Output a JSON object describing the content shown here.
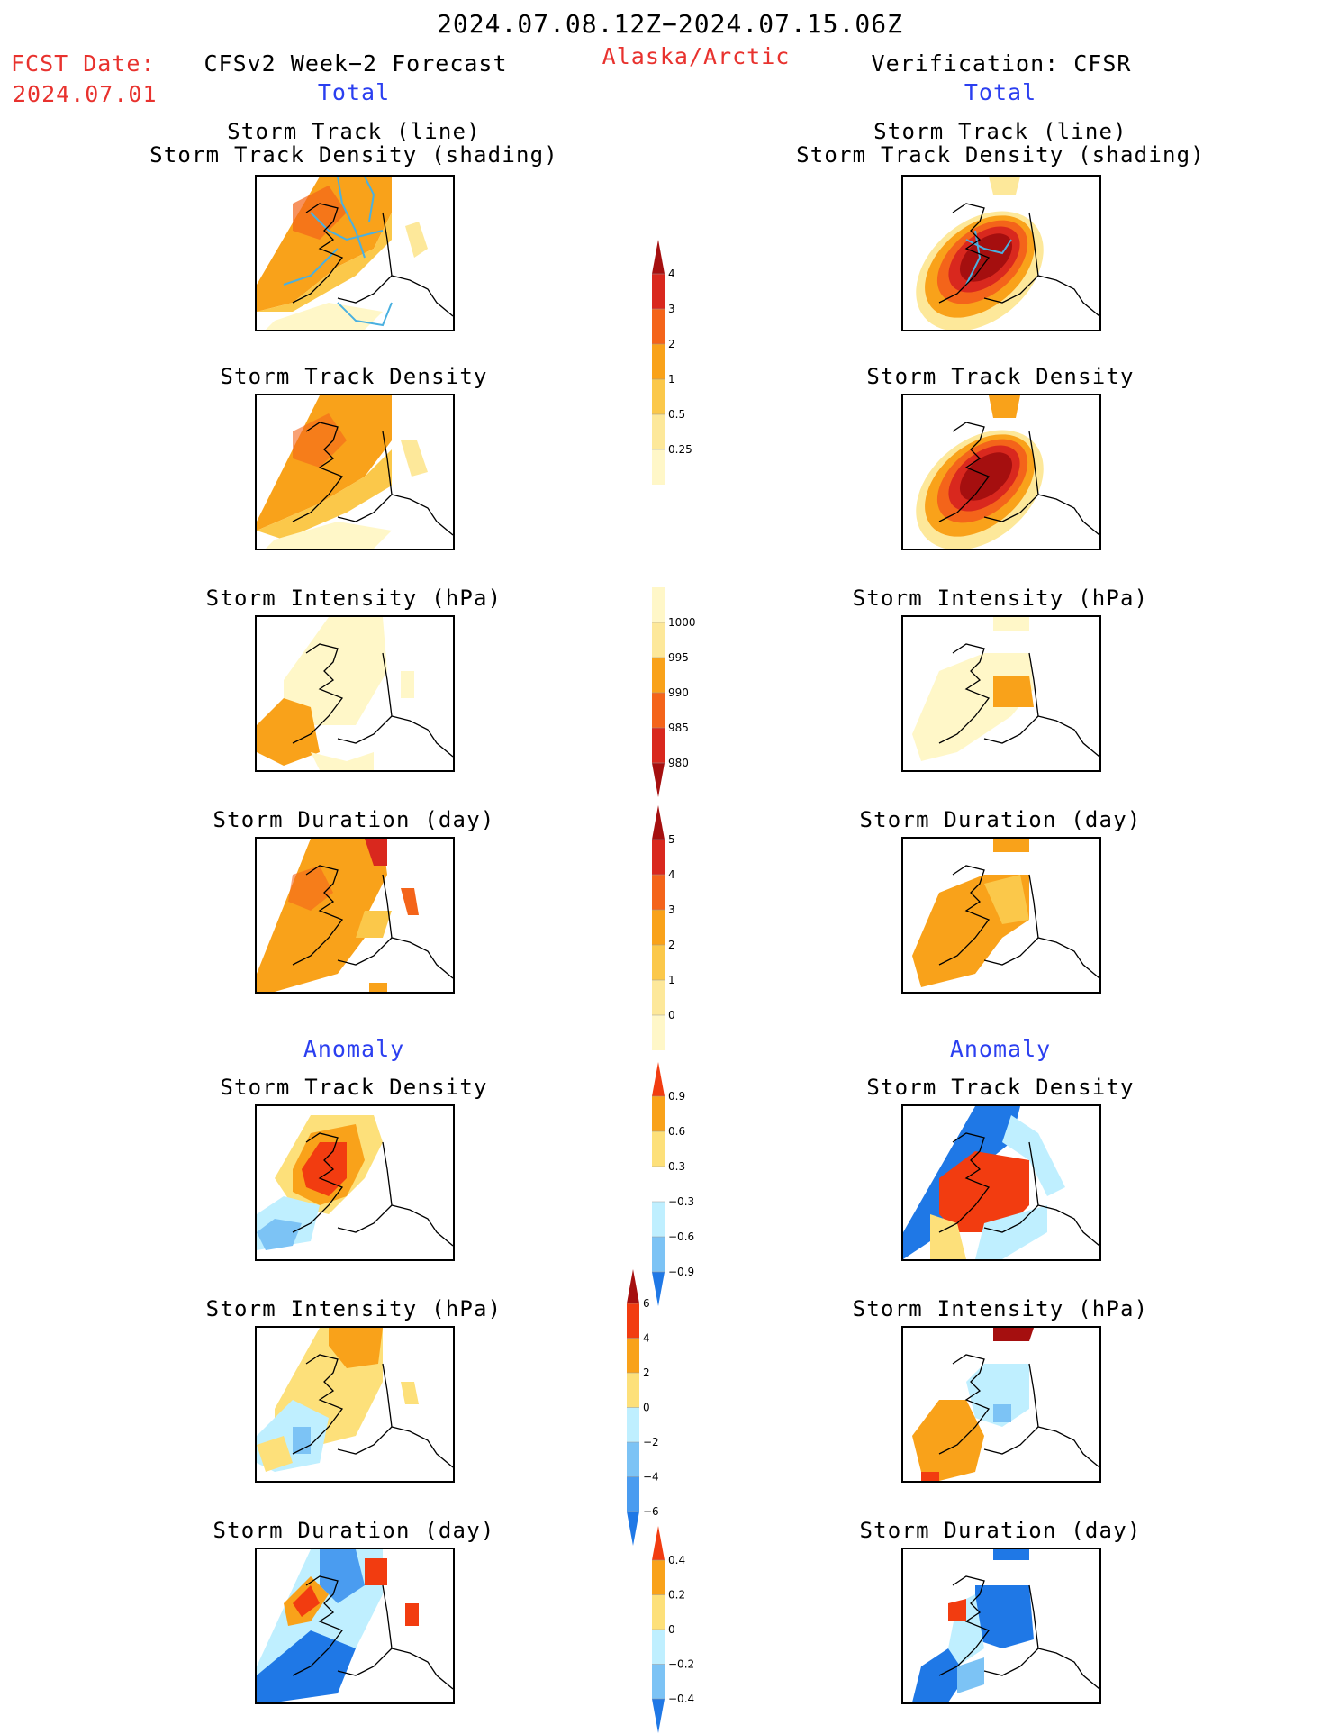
{
  "header": {
    "date_range": "2024.07.08.12Z−2024.07.15.06Z",
    "fcst_date_label": "FCST Date:",
    "fcst_date_value": "2024.07.01",
    "left_title": "CFSv2 Week−2 Forecast",
    "region": "Alaska/Arctic",
    "right_title": "Verification: CFSR",
    "total_left": "Total",
    "total_right": "Total"
  },
  "sections": {
    "anomaly_left": "Anomaly",
    "anomaly_right": "Anomaly"
  },
  "panels": {
    "left": [
      {
        "title1": "Storm Track (line)",
        "title2": "Storm Track Density (shading)"
      },
      {
        "title1": "Storm Track Density"
      },
      {
        "title1": "Storm Intensity (hPa)"
      },
      {
        "title1": "Storm Duration (day)"
      },
      {
        "title1": "Storm Track Density"
      },
      {
        "title1": "Storm Intensity (hPa)"
      },
      {
        "title1": "Storm Duration (day)"
      }
    ],
    "right": [
      {
        "title1": "Storm Track (line)",
        "title2": "Storm Track Density (shading)"
      },
      {
        "title1": "Storm Track Density"
      },
      {
        "title1": "Storm Intensity (hPa)"
      },
      {
        "title1": "Storm Duration (day)"
      },
      {
        "title1": "Storm Track Density"
      },
      {
        "title1": "Storm Intensity (hPa)"
      },
      {
        "title1": "Storm Duration (day)"
      }
    ]
  },
  "colorbars": [
    {
      "name": "density",
      "labels": [
        "4",
        "3",
        "2",
        "1",
        "0.5",
        "0.25"
      ],
      "colors": [
        "#a50f0f",
        "#d9281e",
        "#f4641a",
        "#f9a21a",
        "#fbc84a",
        "#fde89a",
        "#fff7c8"
      ]
    },
    {
      "name": "intensity",
      "labels": [
        "1000",
        "995",
        "990",
        "985",
        "980"
      ],
      "colors": [
        "#fff7c8",
        "#fde89a",
        "#f9a21a",
        "#f4641a",
        "#d9281e",
        "#a50f0f"
      ]
    },
    {
      "name": "duration",
      "labels": [
        "5",
        "4",
        "3",
        "2",
        "1",
        "0"
      ],
      "colors": [
        "#a50f0f",
        "#d9281e",
        "#f4641a",
        "#f9a21a",
        "#fbc84a",
        "#fde89a",
        "#fff7c8"
      ]
    },
    {
      "name": "density-anomaly",
      "labels": [
        "0.9",
        "0.6",
        "0.3",
        "−0.3",
        "−0.6",
        "−0.9"
      ],
      "colors": [
        "#f23c10",
        "#f9a21a",
        "#fde07a",
        "#ffffff",
        "#bfefff",
        "#7cc3f5",
        "#1f78e6"
      ]
    },
    {
      "name": "intensity-anomaly",
      "labels": [
        "6",
        "4",
        "2",
        "0",
        "−2",
        "−4",
        "−6"
      ],
      "colors": [
        "#a50f0f",
        "#f23c10",
        "#f9a21a",
        "#fde07a",
        "#bfefff",
        "#7cc3f5",
        "#4a9cf0",
        "#1f78e6"
      ]
    },
    {
      "name": "duration-anomaly",
      "labels": [
        "0.4",
        "0.2",
        "0",
        "−0.2",
        "−0.4"
      ],
      "colors": [
        "#f23c10",
        "#f9a21a",
        "#fde07a",
        "#bfefff",
        "#7cc3f5",
        "#1f78e6"
      ]
    }
  ]
}
